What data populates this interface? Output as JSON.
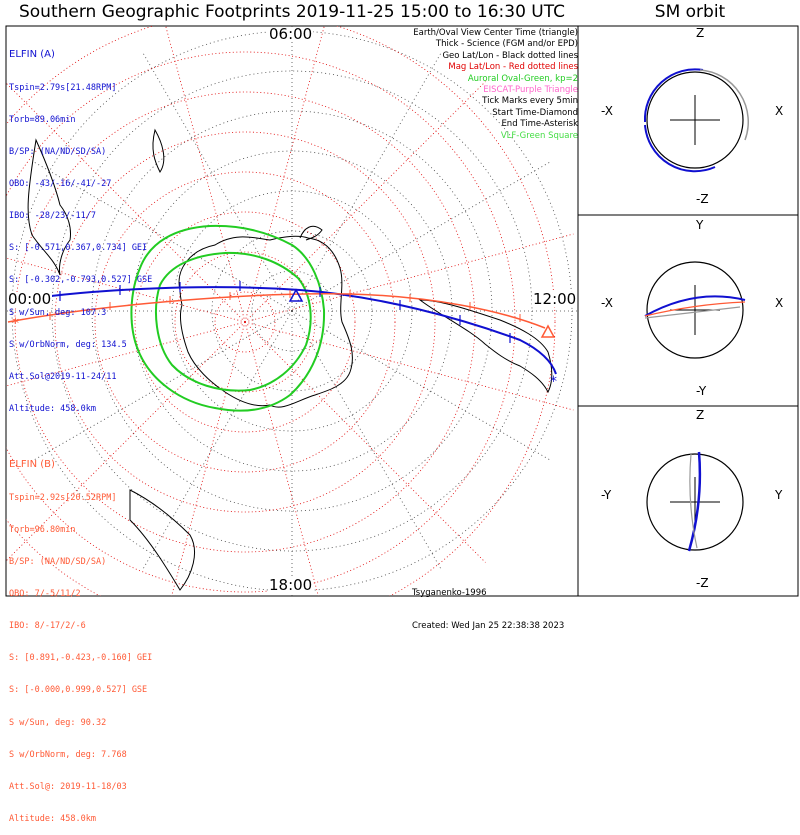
{
  "title": "Southern Geographic Footprints 2019-11-25 15:00 to 16:30 UTC",
  "sm_title": "SM orbit",
  "mlt_labels": {
    "top": "06:00",
    "left": "00:00",
    "right": "12:00",
    "bottom": "18:00"
  },
  "elfin_a": {
    "header": "ELFIN (A)",
    "color": "#1010d0",
    "lines": [
      "Tspin=2.79s[21.48RPM]",
      "Torb=89.06min",
      "B/SP: (NA/ND/SD/SA)",
      "OBO: -43/-16/-41/-27",
      "IBO: -28/23/-11/7",
      "S: [-0.571,0.367,0.734] GEI",
      "S: [-0.302,-0.793,0.527] GSE",
      "S w/Sun, deg: 107.3",
      "S w/OrbNorm, deg: 134.5",
      "Att.Sol@2019-11-24/11",
      "Altitude: 458.0km"
    ]
  },
  "elfin_b": {
    "header": "ELFIN (B)",
    "color": "#ff5a36",
    "lines": [
      "Tspin=2.92s[20.52RPM]",
      "Torb=96.80min",
      "B/SP: (NA/ND/SD/SA)",
      "OBO: 7/-5/11/2",
      "IBO: 8/-17/2/-6",
      "S: [0.891,-0.423,-0.160] GEI",
      "S: [-0.000,0.999,0.527] GSE",
      "S w/Sun, deg: 90.32",
      "S w/OrbNorm, deg: 7.768",
      "Att.Sol@: 2019-11-18/03",
      "Altitude: 458.0km"
    ]
  },
  "legend": [
    {
      "text": "Earth/Oval View Center Time (triangle)",
      "color": "#000000"
    },
    {
      "text": "Thick - Science (FGM and/or EPD)",
      "color": "#000000"
    },
    {
      "text": "Geo Lat/Lon - Black dotted lines",
      "color": "#000000"
    },
    {
      "text": "Mag Lat/Lon - Red dotted lines",
      "color": "#e00000"
    },
    {
      "text": "Auroral Oval-Green, kp=2",
      "color": "#22cc22"
    },
    {
      "text": "EISCAT-Purple Triangle",
      "color": "#ff66cc"
    },
    {
      "text": "Tick Marks every 5min",
      "color": "#000000"
    },
    {
      "text": "Start Time-Diamond",
      "color": "#000000"
    },
    {
      "text": "End Time-Asterisk",
      "color": "#000000"
    },
    {
      "text": "VLF-Green Square",
      "color": "#44dd44"
    }
  ],
  "footer": {
    "model": "Tsyganenko-1996",
    "created": "Created: Wed Jan 25 22:38:38 2023"
  },
  "sm_panels": [
    {
      "top": "Z",
      "bottom": "-Z",
      "left": "-X",
      "right": "X"
    },
    {
      "top": "Y",
      "bottom": "-Y",
      "left": "-X",
      "right": "X"
    },
    {
      "top": "Z",
      "bottom": "-Z",
      "left": "-Y",
      "right": "Y"
    }
  ],
  "chart_data": {
    "type": "polar-map",
    "projection": "southern geographic, orthographic",
    "mlt_axis": [
      "00:00",
      "06:00",
      "12:00",
      "18:00"
    ],
    "series": [
      {
        "name": "ELFIN (A)",
        "color": "#1010d0"
      },
      {
        "name": "ELFIN (B)",
        "color": "#ff5a36"
      }
    ],
    "auroral_oval_kp": 2
  }
}
